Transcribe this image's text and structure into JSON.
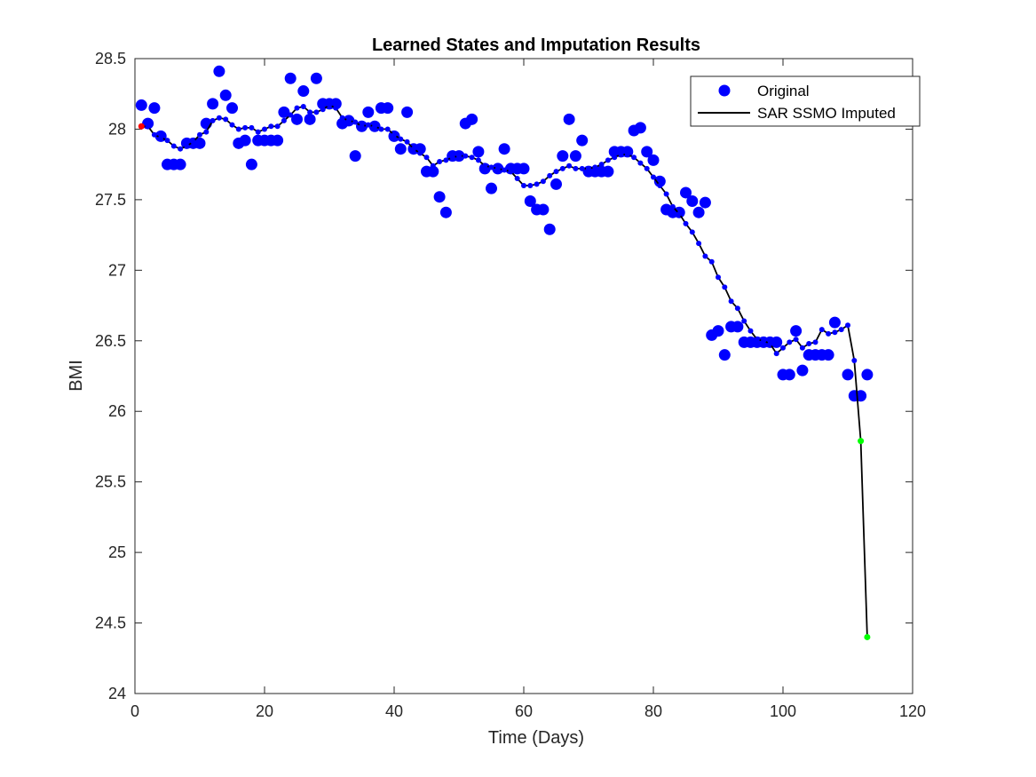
{
  "chart_data": {
    "type": "scatter",
    "title": "Learned States and Imputation Results",
    "xlabel": "Time (Days)",
    "ylabel": "BMI",
    "xlim": [
      0,
      120
    ],
    "ylim": [
      24,
      28.5
    ],
    "xticks": [
      "0",
      "20",
      "40",
      "60",
      "80",
      "100",
      "120"
    ],
    "yticks": [
      "24",
      "24.5",
      "25",
      "25.5",
      "26",
      "26.5",
      "27",
      "27.5",
      "28",
      "28.5"
    ],
    "grid": false,
    "legend_position": "top-right",
    "colors": {
      "original": "#0000ff",
      "imputed_line": "#000000",
      "start_marker": "#ff0000",
      "imputed_marker": "#00ff00"
    },
    "series": [
      {
        "name": "Original",
        "style": "markers",
        "x": [
          1,
          2,
          3,
          4,
          5,
          6,
          7,
          8,
          9,
          10,
          11,
          12,
          13,
          14,
          15,
          16,
          17,
          18,
          19,
          20,
          21,
          22,
          23,
          24,
          25,
          26,
          27,
          28,
          29,
          30,
          31,
          32,
          33,
          34,
          35,
          36,
          37,
          38,
          39,
          40,
          41,
          42,
          43,
          44,
          45,
          46,
          47,
          48,
          49,
          50,
          51,
          52,
          53,
          54,
          55,
          56,
          57,
          58,
          59,
          60,
          61,
          62,
          63,
          64,
          65,
          66,
          67,
          68,
          69,
          70,
          71,
          72,
          73,
          74,
          75,
          76,
          77,
          78,
          79,
          80,
          81,
          82,
          83,
          84,
          85,
          86,
          87,
          88,
          89,
          90,
          91,
          92,
          93,
          94,
          95,
          96,
          97,
          98,
          99,
          100,
          101,
          102,
          103,
          104,
          105,
          106,
          107,
          108,
          110,
          111,
          112,
          113
        ],
        "y": [
          28.17,
          28.04,
          28.15,
          27.95,
          27.75,
          27.75,
          27.75,
          27.9,
          27.9,
          27.9,
          28.04,
          28.18,
          28.41,
          28.24,
          28.15,
          27.9,
          27.92,
          27.75,
          27.92,
          27.92,
          27.92,
          27.92,
          28.12,
          28.36,
          28.07,
          28.27,
          28.07,
          28.36,
          28.18,
          28.18,
          28.18,
          28.04,
          28.06,
          27.81,
          28.02,
          28.12,
          28.02,
          28.15,
          28.15,
          27.95,
          27.86,
          28.12,
          27.86,
          27.86,
          27.7,
          27.7,
          27.52,
          27.41,
          27.81,
          27.81,
          28.04,
          28.07,
          27.84,
          27.72,
          27.58,
          27.72,
          27.86,
          27.72,
          27.72,
          27.72,
          27.49,
          27.43,
          27.43,
          27.29,
          27.61,
          27.81,
          28.07,
          27.81,
          27.92,
          27.7,
          27.7,
          27.7,
          27.7,
          27.84,
          27.84,
          27.84,
          27.99,
          28.01,
          27.84,
          27.78,
          27.63,
          27.43,
          27.41,
          27.41,
          27.55,
          27.49,
          27.41,
          27.48,
          26.54,
          26.57,
          26.4,
          26.6,
          26.6,
          26.49,
          26.49,
          26.49,
          26.49,
          26.49,
          26.49,
          26.26,
          26.26,
          26.57,
          26.29,
          26.4,
          26.4,
          26.4,
          26.4,
          26.63,
          26.26,
          26.11,
          26.11,
          26.26
        ]
      },
      {
        "name": "SAR SSMO Imputed",
        "style": "line",
        "x": [
          1,
          2,
          3,
          4,
          5,
          6,
          7,
          8,
          9,
          10,
          11,
          12,
          13,
          14,
          15,
          16,
          17,
          18,
          19,
          20,
          21,
          22,
          23,
          24,
          25,
          26,
          27,
          28,
          29,
          30,
          31,
          32,
          33,
          34,
          35,
          36,
          37,
          38,
          39,
          40,
          41,
          42,
          43,
          44,
          45,
          46,
          47,
          48,
          49,
          50,
          51,
          52,
          53,
          54,
          55,
          56,
          57,
          58,
          59,
          60,
          61,
          62,
          63,
          64,
          65,
          66,
          67,
          68,
          69,
          70,
          71,
          72,
          73,
          74,
          75,
          76,
          77,
          78,
          79,
          80,
          81,
          82,
          83,
          84,
          85,
          86,
          87,
          88,
          89,
          90,
          91,
          92,
          93,
          94,
          95,
          96,
          97,
          98,
          99,
          100,
          101,
          102,
          103,
          104,
          105,
          106,
          107,
          108,
          109,
          110,
          111,
          112,
          113
        ],
        "y": [
          28.02,
          28.02,
          27.96,
          27.94,
          27.92,
          27.88,
          27.86,
          27.88,
          27.91,
          27.96,
          27.98,
          28.06,
          28.08,
          28.07,
          28.03,
          28.0,
          28.01,
          28.01,
          27.98,
          28.0,
          28.02,
          28.02,
          28.06,
          28.1,
          28.15,
          28.16,
          28.12,
          28.12,
          28.14,
          28.17,
          28.15,
          28.08,
          28.06,
          28.05,
          28.02,
          28.03,
          28.02,
          28.0,
          28.0,
          27.96,
          27.93,
          27.91,
          27.86,
          27.83,
          27.8,
          27.74,
          27.77,
          27.78,
          27.8,
          27.81,
          27.81,
          27.8,
          27.78,
          27.74,
          27.73,
          27.72,
          27.71,
          27.7,
          27.65,
          27.6,
          27.6,
          27.61,
          27.63,
          27.67,
          27.7,
          27.72,
          27.74,
          27.72,
          27.72,
          27.72,
          27.73,
          27.75,
          27.78,
          27.8,
          27.82,
          27.82,
          27.8,
          27.76,
          27.72,
          27.66,
          27.6,
          27.54,
          27.45,
          27.4,
          27.33,
          27.27,
          27.19,
          27.1,
          27.06,
          26.95,
          26.88,
          26.78,
          26.73,
          26.64,
          26.57,
          26.51,
          26.5,
          26.48,
          26.41,
          26.45,
          26.49,
          26.51,
          26.45,
          26.48,
          26.49,
          26.58,
          26.55,
          26.56,
          26.58,
          26.61,
          26.36,
          25.79,
          24.4
        ]
      },
      {
        "name": "Start",
        "style": "marker",
        "x": [
          1
        ],
        "y": [
          28.02
        ]
      },
      {
        "name": "Imputed",
        "style": "marker",
        "x": [
          112,
          113
        ],
        "y": [
          25.79,
          24.4
        ]
      }
    ]
  }
}
